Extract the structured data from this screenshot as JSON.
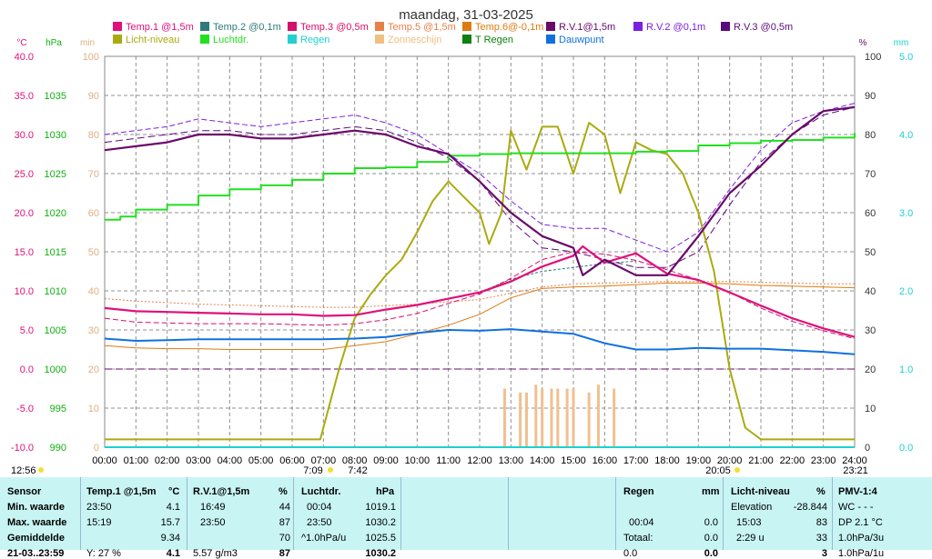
{
  "title": "maandag, 31-03-2025",
  "legend": [
    {
      "label": "Temp.1 @1,5m",
      "color": "#e0107a"
    },
    {
      "label": "Temp.2 @0,1m",
      "color": "#2e7a7a"
    },
    {
      "label": "Temp.3 @0,5m",
      "color": "#d4106a"
    },
    {
      "label": "Temp.5 @1,5m",
      "color": "#e8804a"
    },
    {
      "label": "Temp.6@-0,1m",
      "color": "#e07a10"
    },
    {
      "label": "R.V.1@1,5m",
      "color": "#6a0a6a"
    },
    {
      "label": "R.V.2 @0,1m",
      "color": "#7a20e0"
    },
    {
      "label": "R.V.3 @0,5m",
      "color": "#5a0a7a"
    },
    {
      "label": "Licht-niveau",
      "color": "#aaaa10"
    },
    {
      "label": "Luchtdr.",
      "color": "#20e020"
    },
    {
      "label": "Regen",
      "color": "#20d0d0"
    },
    {
      "label": "Zonneschijn",
      "color": "#f0c080"
    },
    {
      "label": "T Regen",
      "color": "#108010"
    },
    {
      "label": "Dauwpunt",
      "color": "#1070e0"
    }
  ],
  "axes": {
    "temp": {
      "unit": "°C",
      "ticks": [
        "40.0",
        "35.0",
        "30.0",
        "25.0",
        "20.0",
        "15.0",
        "10.0",
        "5.0",
        "0.0",
        "-5.0",
        "-10.0"
      ],
      "color": "#e0107a"
    },
    "hpa": {
      "unit": "hPa",
      "ticks": [
        "1035",
        "1030",
        "1025",
        "1020",
        "1015",
        "1010",
        "1005",
        "1000",
        "995",
        "990"
      ],
      "color": "#10b010"
    },
    "min": {
      "unit": "min",
      "ticks": [
        "100",
        "90",
        "80",
        "70",
        "60",
        "50",
        "40",
        "30",
        "20",
        "10",
        "0"
      ],
      "color": "#e0b080"
    },
    "pct": {
      "unit": "%",
      "ticks": [
        "100",
        "90",
        "80",
        "70",
        "60",
        "50",
        "40",
        "30",
        "20",
        "10",
        "0"
      ],
      "color": "#6a0a6a"
    },
    "mm": {
      "unit": "mm",
      "ticks": [
        "5.0",
        "4.0",
        "3.0",
        "2.0",
        "1.0",
        "0.0"
      ],
      "color": "#20d0d0"
    }
  },
  "time_labels": [
    "00:00",
    "01:00",
    "02:00",
    "03:00",
    "04:00",
    "05:00",
    "06:00",
    "07:00",
    "08:00",
    "09:00",
    "10:00",
    "11:00",
    "12:00",
    "13:00",
    "14:00",
    "15:00",
    "16:00",
    "17:00",
    "18:00",
    "19:00",
    "20:00",
    "21:00",
    "22:00",
    "23:00",
    "24:00"
  ],
  "sun_events": {
    "day_length": "12:56",
    "sunrise": "7:09",
    "transit": "7:42",
    "sunset": "20:05",
    "moon": "23:21"
  },
  "chart_data": {
    "type": "line",
    "x_unit": "hour",
    "xlim": [
      0,
      24
    ],
    "ylim_temp": [
      -10,
      40
    ],
    "ylim_pct": [
      0,
      100
    ],
    "series": [
      {
        "name": "Temp.1 @1,5m",
        "axis": "temp",
        "x": [
          0,
          1,
          2,
          3,
          4,
          5,
          6,
          7,
          8,
          9,
          10,
          11,
          12,
          13,
          14,
          15,
          15.3,
          16,
          17,
          18,
          19,
          20,
          21,
          22,
          23,
          24
        ],
        "y": [
          7.8,
          7.4,
          7.3,
          7.2,
          7.1,
          7.0,
          7.0,
          6.8,
          6.9,
          7.6,
          8.2,
          9.0,
          9.8,
          11.2,
          13.1,
          14.5,
          15.7,
          13.6,
          14.8,
          12.2,
          11.4,
          9.8,
          8.1,
          6.5,
          5.2,
          4.1
        ]
      },
      {
        "name": "Temp.2 @0,1m",
        "axis": "temp",
        "x": [
          12,
          13,
          14,
          15,
          16,
          17
        ],
        "y": [
          9.8,
          11.5,
          12.5,
          13.0,
          13.5,
          13.8
        ]
      },
      {
        "name": "Temp.3 @0,5m",
        "axis": "temp",
        "x": [
          0,
          1,
          2,
          3,
          4,
          5,
          6,
          7,
          8,
          9,
          10,
          11,
          12,
          13,
          14,
          15,
          16,
          17,
          18,
          19,
          20,
          21,
          22,
          23,
          24
        ],
        "y": [
          6.5,
          6.0,
          5.9,
          5.8,
          5.8,
          5.8,
          5.7,
          5.6,
          5.8,
          6.3,
          7.1,
          8.4,
          9.6,
          11.6,
          14.0,
          15.0,
          14.7,
          13.9,
          12.7,
          11.4,
          9.8,
          7.8,
          6.1,
          4.9,
          3.9
        ]
      },
      {
        "name": "Temp.5 @1,5m",
        "axis": "temp",
        "x": [
          0,
          1,
          2,
          3,
          4,
          5,
          6,
          7,
          8,
          9,
          10,
          11,
          12,
          13,
          14,
          15,
          16,
          17,
          18,
          19,
          20,
          21,
          22,
          23,
          24
        ],
        "y": [
          9.0,
          8.7,
          8.5,
          8.3,
          8.2,
          8.1,
          8.0,
          7.9,
          7.9,
          8.1,
          8.3,
          8.6,
          8.9,
          9.7,
          10.5,
          10.9,
          11.0,
          11.1,
          11.2,
          11.2,
          11.2,
          11.1,
          11.0,
          10.9,
          10.9
        ]
      },
      {
        "name": "Temp.6@-0,1m",
        "axis": "temp",
        "x": [
          0,
          1,
          2,
          3,
          4,
          5,
          6,
          7,
          8,
          9,
          10,
          11,
          12,
          13,
          14,
          15,
          16,
          17,
          18,
          19,
          20,
          21,
          22,
          23,
          24
        ],
        "y": [
          3.0,
          2.7,
          2.6,
          2.6,
          2.5,
          2.5,
          2.5,
          2.5,
          3.0,
          3.5,
          4.5,
          5.6,
          7.0,
          9.1,
          10.3,
          10.5,
          10.6,
          10.8,
          11.0,
          11.0,
          10.9,
          10.7,
          10.6,
          10.5,
          10.4
        ]
      },
      {
        "name": "R.V.1@1,5m",
        "axis": "pct",
        "x": [
          0,
          1,
          2,
          3,
          4,
          5,
          6,
          7,
          8,
          9,
          10,
          11,
          12,
          13,
          14,
          15,
          15.3,
          16,
          17,
          18,
          19,
          20,
          21,
          22,
          23,
          24
        ],
        "y": [
          76,
          77,
          78,
          80,
          80,
          79,
          79,
          80,
          81,
          80,
          77,
          75,
          68,
          60,
          54,
          51,
          44,
          48,
          44,
          44,
          54,
          65,
          72,
          80,
          86,
          87
        ]
      },
      {
        "name": "R.V.2 @0,1m",
        "axis": "pct",
        "x": [
          0,
          1,
          2,
          3,
          4,
          5,
          6,
          7,
          8,
          9,
          10,
          11,
          12,
          13,
          14,
          15,
          16,
          17,
          18,
          19,
          20,
          21,
          22,
          23,
          24
        ],
        "y": [
          80,
          81,
          82,
          84,
          83,
          82,
          83,
          84,
          85,
          83,
          80,
          75,
          70,
          63,
          57,
          56,
          56,
          53,
          50,
          55,
          66,
          76,
          83,
          86,
          88
        ]
      },
      {
        "name": "R.V.3 @0,5m",
        "axis": "pct",
        "x": [
          0,
          1,
          2,
          3,
          4,
          5,
          6,
          7,
          8,
          9,
          10,
          11,
          12,
          13,
          14,
          15,
          16,
          17,
          18,
          19,
          20,
          21,
          22,
          23,
          24
        ],
        "y": [
          78,
          79,
          80,
          81,
          81,
          80,
          80,
          81,
          82,
          81,
          78,
          74,
          68,
          58,
          51,
          50,
          48,
          46,
          46,
          50,
          62,
          73,
          80,
          85,
          87
        ]
      },
      {
        "name": "Licht-niveau",
        "axis": "pct",
        "x": [
          0,
          6.9,
          7.5,
          8,
          8.5,
          9,
          9.5,
          10,
          10.5,
          11,
          11.5,
          12,
          12.3,
          12.7,
          13,
          13.5,
          14,
          14.5,
          15,
          15.5,
          16,
          16.5,
          17,
          17.5,
          18,
          18.5,
          19,
          19.5,
          20,
          20.5,
          21,
          22,
          23,
          24
        ],
        "y": [
          2,
          2,
          20,
          33,
          39,
          44,
          48,
          55,
          63,
          68,
          64,
          60,
          52,
          60,
          81,
          71,
          82,
          82,
          70,
          83,
          80,
          65,
          78,
          76,
          75,
          70,
          60,
          45,
          20,
          5,
          2,
          2,
          2,
          2
        ]
      },
      {
        "name": "Luchtdr.",
        "axis": "hpa",
        "x": [
          0,
          0.5,
          1,
          2,
          3,
          4,
          5,
          6,
          7,
          8,
          9,
          10,
          11,
          12,
          13,
          14,
          15,
          16,
          17,
          18,
          19,
          20,
          21,
          22,
          23,
          24
        ],
        "y": [
          1019.1,
          1019.5,
          1020.4,
          1021.0,
          1022.2,
          1023.0,
          1023.5,
          1024.2,
          1025.0,
          1025.7,
          1025.8,
          1026.5,
          1027.3,
          1027.5,
          1027.6,
          1027.6,
          1027.6,
          1027.6,
          1027.8,
          1027.9,
          1028.6,
          1028.9,
          1029.2,
          1029.3,
          1029.6,
          1030.2
        ]
      },
      {
        "name": "Dauwpunt",
        "axis": "temp",
        "x": [
          0,
          1,
          2,
          3,
          4,
          5,
          6,
          7,
          8,
          9,
          10,
          11,
          12,
          13,
          14,
          15,
          16,
          17,
          18,
          19,
          20,
          21,
          22,
          23,
          24
        ],
        "y": [
          3.9,
          3.6,
          3.7,
          3.8,
          3.8,
          3.8,
          3.8,
          3.8,
          3.9,
          4.1,
          4.6,
          5.0,
          4.9,
          5.1,
          4.8,
          4.5,
          3.3,
          2.5,
          2.5,
          2.7,
          2.6,
          2.6,
          2.4,
          2.2,
          1.9
        ]
      },
      {
        "name": "Regen",
        "axis": "mm",
        "x": [
          0,
          24
        ],
        "y": [
          0,
          0
        ]
      }
    ],
    "sunshine_bars": {
      "x": [
        12.8,
        13.3,
        13.5,
        13.8,
        14.0,
        14.3,
        14.5,
        14.8,
        15.0,
        15.5,
        15.8,
        16.3
      ],
      "y": [
        15,
        14,
        14,
        16,
        15,
        15,
        15,
        15,
        15,
        14,
        16,
        15
      ]
    }
  },
  "table": {
    "row_labels": [
      "Sensor",
      "Min. waarde",
      "Max. waarde",
      "Gemiddelde",
      "21-03..23:59"
    ],
    "temp": {
      "header": "Temp.1 @1,5m",
      "unit": "°C",
      "rows": [
        [
          "23:50",
          "4.1"
        ],
        [
          "15:19",
          "15.7"
        ],
        [
          "",
          "9.34"
        ],
        [
          "Y: 27 %",
          "4.1"
        ]
      ]
    },
    "rv": {
      "header": "R.V.1@1,5m",
      "unit": "%",
      "rows": [
        [
          "16:49",
          "44"
        ],
        [
          "23:50",
          "87"
        ],
        [
          "",
          "70"
        ],
        [
          "5.57 g/m3",
          "87"
        ]
      ]
    },
    "pres": {
      "header": "Luchtdr.",
      "unit": "hPa",
      "rows": [
        [
          "00:04",
          "1019.1"
        ],
        [
          "23:50",
          "1030.2"
        ],
        [
          "^1.0hPa/u",
          "1025.5"
        ],
        [
          "",
          "1030.2"
        ]
      ]
    },
    "rain": {
      "header": "Regen",
      "unit": "mm",
      "rows": [
        [
          "00:04",
          "0.0"
        ],
        [
          "Totaal:",
          "0.0"
        ],
        [
          "0.0",
          "0.0"
        ]
      ]
    },
    "light": {
      "header": "Licht-niveau",
      "unit": "%",
      "rows": [
        [
          "Elevation",
          "-28.844"
        ],
        [
          "15:03",
          "83"
        ],
        [
          "2:29 u",
          "33"
        ],
        [
          "",
          "3"
        ]
      ]
    },
    "pmv": {
      "header": "PMV-1:4",
      "rows": [
        "WC - - -",
        "DP 2.1 °C",
        "1.0hPa/3u",
        "1.0hPa/1u"
      ]
    }
  }
}
